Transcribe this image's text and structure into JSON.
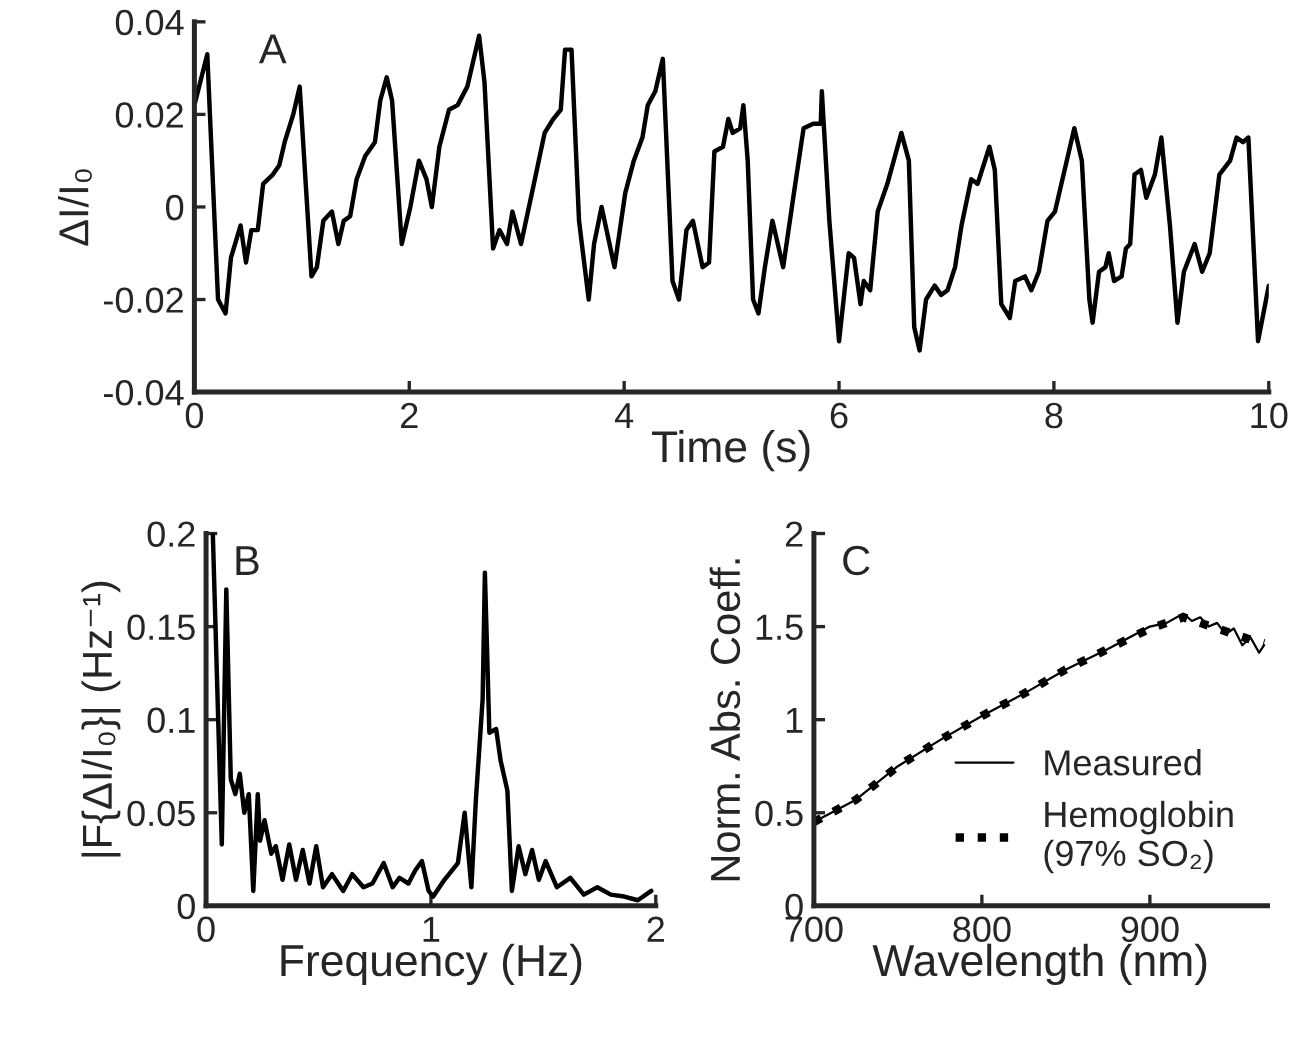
{
  "chart_data": [
    {
      "type": "line",
      "xlabel": "Time (s)",
      "ylabel": "ΔI/I₀",
      "annotations": [
        "A"
      ],
      "xlim": [
        0,
        10
      ],
      "xticks": [
        0,
        2,
        4,
        6,
        8,
        10
      ],
      "ylim": [
        -0.04,
        0.04
      ],
      "yticks": [
        -0.04,
        -0.02,
        0,
        0.02,
        0.04
      ],
      "grid": false,
      "legend": false,
      "series": [
        {
          "color": "#000000",
          "line_style": "solid",
          "x": [
            0,
            0.12,
            0.22,
            0.29,
            0.34,
            0.43,
            0.48,
            0.53,
            0.59,
            0.64,
            0.73,
            0.79,
            0.84,
            0.92,
            0.98,
            1.09,
            1.14,
            1.2,
            1.28,
            1.34,
            1.39,
            1.45,
            1.51,
            1.59,
            1.68,
            1.73,
            1.79,
            1.84,
            1.93,
            2.01,
            2.09,
            2.16,
            2.21,
            2.28,
            2.37,
            2.45,
            2.54,
            2.65,
            2.7,
            2.78,
            2.84,
            2.91,
            2.96,
            3.04,
            3.16,
            3.26,
            3.34,
            3.41,
            3.45,
            3.51,
            3.58,
            3.67,
            3.72,
            3.79,
            3.91,
            4.01,
            4.09,
            4.17,
            4.22,
            4.29,
            4.36,
            4.45,
            4.51,
            4.58,
            4.64,
            4.73,
            4.79,
            4.84,
            4.92,
            4.97,
            5.01,
            5.08,
            5.11,
            5.15,
            5.2,
            5.25,
            5.31,
            5.38,
            5.48,
            5.58,
            5.67,
            5.76,
            5.83,
            5.84,
            5.91,
            6.0,
            6.09,
            6.14,
            6.2,
            6.23,
            6.29,
            6.36,
            6.45,
            6.58,
            6.65,
            6.7,
            6.75,
            6.81,
            6.89,
            6.95,
            7.01,
            7.08,
            7.14,
            7.23,
            7.29,
            7.4,
            7.45,
            7.51,
            7.59,
            7.64,
            7.73,
            7.79,
            7.86,
            7.94,
            8.01,
            8.11,
            8.19,
            8.26,
            8.33,
            8.36,
            8.42,
            8.48,
            8.51,
            8.56,
            8.63,
            8.67,
            8.71,
            8.75,
            8.81,
            8.86,
            8.94,
            9.0,
            9.08,
            9.15,
            9.21,
            9.31,
            9.38,
            9.45,
            9.54,
            9.64,
            9.7,
            9.76,
            9.81,
            9.9,
            10.0
          ],
          "values": [
            0.022,
            0.033,
            -0.02,
            -0.023,
            -0.011,
            -0.004,
            -0.012,
            -0.005,
            -0.005,
            0.005,
            0.007,
            0.009,
            0.014,
            0.02,
            0.026,
            -0.015,
            -0.013,
            -0.003,
            -0.001,
            -0.008,
            -0.003,
            -0.002,
            0.006,
            0.011,
            0.014,
            0.023,
            0.028,
            0.023,
            -0.008,
            0.0,
            0.01,
            0.006,
            0.0,
            0.013,
            0.021,
            0.022,
            0.026,
            0.037,
            0.027,
            -0.009,
            -0.005,
            -0.008,
            -0.001,
            -0.008,
            0.005,
            0.016,
            0.019,
            0.021,
            0.034,
            0.034,
            -0.003,
            -0.02,
            -0.008,
            0.0,
            -0.013,
            0.003,
            0.01,
            0.015,
            0.022,
            0.025,
            0.032,
            -0.016,
            -0.02,
            -0.005,
            -0.003,
            -0.013,
            -0.012,
            0.012,
            0.013,
            0.019,
            0.016,
            0.017,
            0.022,
            0.01,
            -0.02,
            -0.023,
            -0.013,
            -0.003,
            -0.013,
            0.003,
            0.017,
            0.018,
            0.018,
            0.025,
            -0.003,
            -0.029,
            -0.01,
            -0.011,
            -0.021,
            -0.016,
            -0.018,
            -0.001,
            0.005,
            0.016,
            0.01,
            -0.026,
            -0.031,
            -0.02,
            -0.017,
            -0.019,
            -0.018,
            -0.013,
            -0.004,
            0.006,
            0.005,
            0.013,
            0.008,
            -0.021,
            -0.024,
            -0.016,
            -0.015,
            -0.018,
            -0.014,
            -0.003,
            -0.001,
            0.009,
            0.017,
            0.01,
            -0.02,
            -0.025,
            -0.014,
            -0.013,
            -0.01,
            -0.016,
            -0.015,
            -0.009,
            -0.008,
            0.007,
            0.008,
            0.002,
            0.007,
            0.015,
            -0.004,
            -0.025,
            -0.014,
            -0.008,
            -0.014,
            -0.01,
            0.007,
            0.01,
            0.015,
            0.014,
            0.015,
            -0.029,
            -0.017
          ]
        }
      ]
    },
    {
      "type": "line",
      "xlabel": "Frequency (Hz)",
      "ylabel": "|F{ΔI/I₀}| (Hz⁻¹)",
      "annotations": [
        "B"
      ],
      "xlim": [
        0,
        2
      ],
      "xticks": [
        0,
        1,
        2
      ],
      "ylim": [
        0,
        0.2
      ],
      "yticks": [
        0,
        0.05,
        0.1,
        0.15,
        0.2
      ],
      "grid": false,
      "legend": false,
      "series": [
        {
          "color": "#000000",
          "line_style": "solid",
          "x": [
            0.03,
            0.07,
            0.09,
            0.11,
            0.13,
            0.15,
            0.17,
            0.19,
            0.21,
            0.23,
            0.24,
            0.26,
            0.29,
            0.31,
            0.34,
            0.37,
            0.4,
            0.43,
            0.46,
            0.49,
            0.52,
            0.56,
            0.61,
            0.65,
            0.7,
            0.74,
            0.79,
            0.83,
            0.86,
            0.9,
            0.93,
            0.96,
            0.99,
            1.01,
            1.06,
            1.12,
            1.15,
            1.18,
            1.2,
            1.23,
            1.24,
            1.26,
            1.29,
            1.31,
            1.34,
            1.36,
            1.39,
            1.42,
            1.45,
            1.48,
            1.51,
            1.56,
            1.62,
            1.68,
            1.74,
            1.8,
            1.86,
            1.92,
            1.98
          ],
          "values": [
            0.2,
            0.033,
            0.17,
            0.068,
            0.06,
            0.071,
            0.05,
            0.06,
            0.008,
            0.06,
            0.035,
            0.046,
            0.028,
            0.032,
            0.014,
            0.033,
            0.014,
            0.03,
            0.012,
            0.032,
            0.01,
            0.017,
            0.008,
            0.017,
            0.01,
            0.012,
            0.023,
            0.01,
            0.015,
            0.012,
            0.019,
            0.024,
            0.008,
            0.005,
            0.014,
            0.023,
            0.05,
            0.01,
            0.057,
            0.111,
            0.179,
            0.093,
            0.095,
            0.078,
            0.062,
            0.008,
            0.032,
            0.017,
            0.03,
            0.014,
            0.024,
            0.01,
            0.015,
            0.006,
            0.01,
            0.006,
            0.005,
            0.003,
            0.008
          ]
        }
      ]
    },
    {
      "type": "line",
      "xlabel": "Wavelength (nm)",
      "ylabel": "Norm. Abs. Coeff.",
      "annotations": [
        "C"
      ],
      "xlim": [
        700,
        970
      ],
      "xticks": [
        700,
        800,
        900
      ],
      "ylim": [
        0,
        2
      ],
      "yticks": [
        0,
        0.5,
        1,
        1.5,
        2
      ],
      "grid": false,
      "legend": "bottom right",
      "series": [
        {
          "name": "Measured",
          "color": "#000000",
          "line_style": "solid",
          "x": [
            700,
            725,
            750,
            775,
            800,
            825,
            850,
            875,
            900,
            910,
            920,
            925,
            930,
            935,
            940,
            945,
            950,
            955,
            960,
            965,
            968
          ],
          "values": [
            0.45,
            0.57,
            0.75,
            0.89,
            1.02,
            1.14,
            1.27,
            1.38,
            1.5,
            1.52,
            1.57,
            1.53,
            1.55,
            1.5,
            1.52,
            1.46,
            1.49,
            1.4,
            1.44,
            1.36,
            1.4
          ]
        },
        {
          "name": "Hemoglobin\n(97% SO₂)",
          "color": "#000000",
          "line_style": "dotted",
          "x": [
            700,
            725,
            750,
            775,
            800,
            825,
            850,
            875,
            900,
            920,
            940,
            960,
            968
          ],
          "values": [
            0.45,
            0.57,
            0.75,
            0.89,
            1.02,
            1.14,
            1.27,
            1.38,
            1.49,
            1.55,
            1.49,
            1.43,
            1.41
          ]
        }
      ]
    }
  ]
}
